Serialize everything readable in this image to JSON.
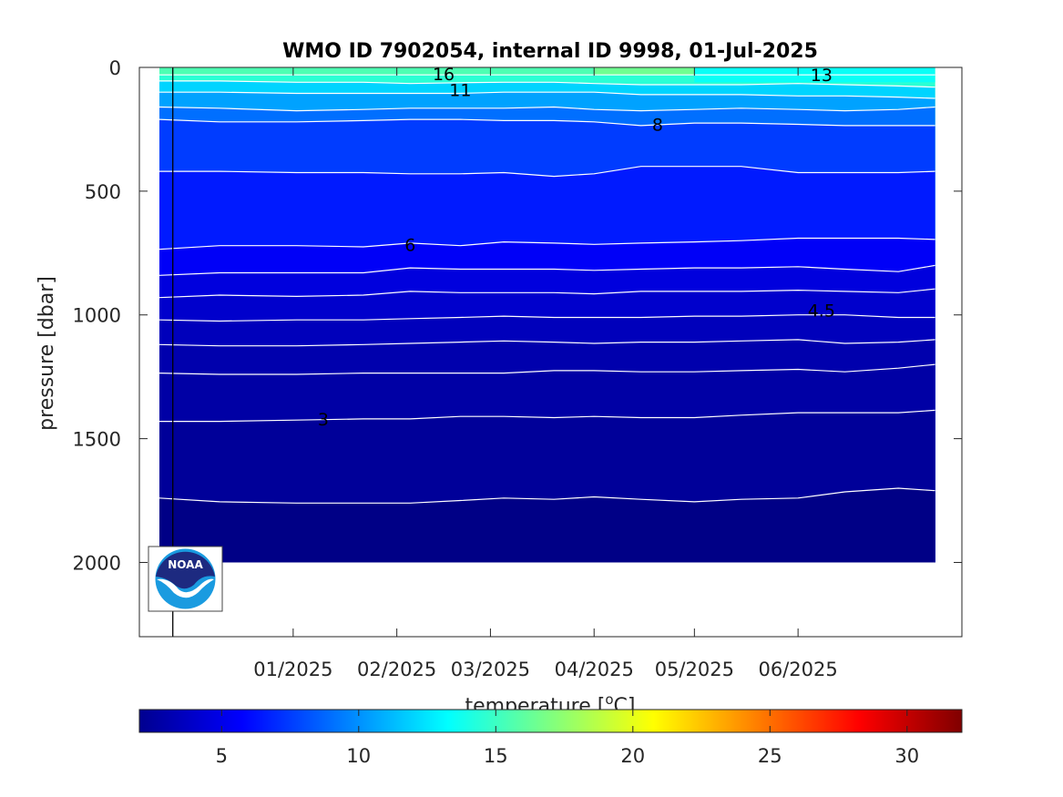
{
  "chart_data": {
    "type": "contour",
    "title": "WMO ID 7902054, internal ID 9998, 01-Jul-2025",
    "ylabel": "pressure [dbar]",
    "colorbar_label": "temperature [°C]",
    "colorbar_label_parts": {
      "pre": "temperature [",
      "sup": "o",
      "post": "C]"
    },
    "colormap": "jet",
    "clim": [
      2,
      32
    ],
    "colorbar_ticks": [
      "5",
      "10",
      "15",
      "20",
      "25",
      "30"
    ],
    "colorbar_tick_values": [
      5,
      10,
      15,
      20,
      25,
      30
    ],
    "xlim": [
      "2024-11-16",
      "2025-07-20"
    ],
    "x_ticks": [
      {
        "date": "2025-01-01",
        "label": "01/2025"
      },
      {
        "date": "2025-02-01",
        "label": "02/2025"
      },
      {
        "date": "2025-03-01",
        "label": "03/2025"
      },
      {
        "date": "2025-04-01",
        "label": "04/2025"
      },
      {
        "date": "2025-05-01",
        "label": "05/2025"
      },
      {
        "date": "2025-06-01",
        "label": "06/2025"
      }
    ],
    "ylim": [
      0,
      2300
    ],
    "y_reversed": true,
    "y_ticks": [
      "0",
      "500",
      "1000",
      "1500",
      "2000"
    ],
    "y_tick_values": [
      0,
      500,
      1000,
      1500,
      2000
    ],
    "data_extent": {
      "x": [
        "2024-11-22",
        "2025-07-12"
      ],
      "y": [
        0,
        2000
      ]
    },
    "deployment_date": "2024-11-26",
    "profile_dates": [
      "2024-11-22",
      "2024-12-10",
      "2025-01-02",
      "2025-01-22",
      "2025-02-05",
      "2025-02-20",
      "2025-03-05",
      "2025-03-20",
      "2025-04-01",
      "2025-04-15",
      "2025-05-01",
      "2025-05-15",
      "2025-06-01",
      "2025-06-15",
      "2025-07-01",
      "2025-07-12"
    ],
    "isotherm_depths": {
      "16": [
        30,
        30,
        30,
        30,
        30,
        30,
        30,
        30,
        30,
        30,
        30,
        30,
        30,
        30,
        30,
        30
      ],
      "13": [
        55,
        55,
        60,
        60,
        65,
        62,
        60,
        60,
        65,
        70,
        70,
        70,
        65,
        70,
        75,
        80
      ],
      "11": [
        100,
        100,
        105,
        105,
        105,
        105,
        100,
        100,
        100,
        110,
        110,
        110,
        115,
        115,
        120,
        125
      ],
      "10": [
        160,
        165,
        175,
        170,
        165,
        165,
        165,
        160,
        170,
        175,
        170,
        165,
        170,
        175,
        170,
        160
      ],
      "8": [
        210,
        220,
        220,
        215,
        210,
        210,
        215,
        215,
        220,
        235,
        225,
        225,
        230,
        235,
        235,
        235
      ],
      "7": [
        420,
        420,
        425,
        425,
        430,
        430,
        425,
        440,
        430,
        400,
        400,
        400,
        425,
        425,
        425,
        420
      ],
      "6": [
        735,
        720,
        720,
        725,
        710,
        720,
        705,
        710,
        715,
        710,
        705,
        700,
        690,
        690,
        690,
        695
      ],
      "5": [
        840,
        830,
        830,
        830,
        810,
        815,
        815,
        815,
        820,
        815,
        810,
        810,
        805,
        815,
        825,
        800
      ],
      "4.5": [
        930,
        920,
        925,
        920,
        905,
        910,
        910,
        910,
        915,
        905,
        905,
        905,
        900,
        905,
        910,
        895
      ],
      "4": [
        1020,
        1025,
        1020,
        1020,
        1015,
        1010,
        1005,
        1010,
        1010,
        1010,
        1005,
        1005,
        1000,
        1000,
        1010,
        1010
      ],
      "3.5": [
        1120,
        1125,
        1125,
        1120,
        1115,
        1110,
        1105,
        1110,
        1115,
        1110,
        1110,
        1105,
        1100,
        1115,
        1110,
        1100
      ],
      "3.2": [
        1235,
        1240,
        1240,
        1235,
        1235,
        1235,
        1235,
        1225,
        1225,
        1230,
        1230,
        1225,
        1220,
        1230,
        1215,
        1200
      ],
      "3": [
        1430,
        1430,
        1425,
        1420,
        1420,
        1410,
        1410,
        1415,
        1410,
        1415,
        1415,
        1405,
        1395,
        1395,
        1395,
        1385
      ],
      "2.5": [
        1740,
        1755,
        1760,
        1760,
        1760,
        1750,
        1740,
        1745,
        1735,
        1745,
        1755,
        1745,
        1740,
        1715,
        1700,
        1710
      ]
    },
    "contour_labels": [
      {
        "text": "16",
        "date": "2025-02-15",
        "pressure": 25
      },
      {
        "text": "11",
        "date": "2025-02-20",
        "pressure": 90
      },
      {
        "text": "13",
        "date": "2025-06-08",
        "pressure": 30
      },
      {
        "text": "8",
        "date": "2025-04-20",
        "pressure": 230
      },
      {
        "text": "6",
        "date": "2025-02-05",
        "pressure": 715
      },
      {
        "text": "4.5",
        "date": "2025-06-08",
        "pressure": 980
      },
      {
        "text": "3",
        "date": "2025-01-10",
        "pressure": 1420
      }
    ]
  },
  "logo": {
    "name": "NOAA",
    "text": "NOAA"
  }
}
